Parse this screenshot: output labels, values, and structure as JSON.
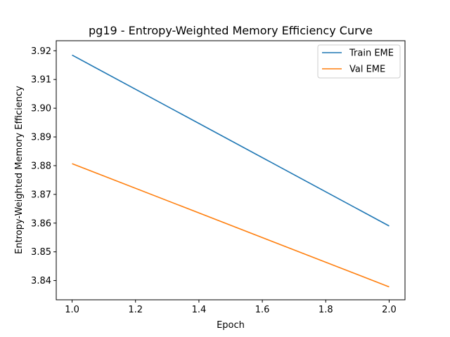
{
  "chart_data": {
    "type": "line",
    "title": "pg19 - Entropy-Weighted Memory Efficiency Curve",
    "xlabel": "Epoch",
    "ylabel": "Entropy-Weighted Memory Efficiency",
    "x": [
      1.0,
      2.0
    ],
    "xlim": [
      0.95,
      2.05
    ],
    "ylim": [
      3.8333,
      3.9235
    ],
    "xticks": [
      "1.0",
      "1.2",
      "1.4",
      "1.6",
      "1.8",
      "2.0"
    ],
    "yticks": [
      "3.84",
      "3.85",
      "3.86",
      "3.87",
      "3.88",
      "3.89",
      "3.90",
      "3.91",
      "3.92"
    ],
    "grid": false,
    "legend_position": "top-right",
    "series": [
      {
        "name": "Train EME",
        "color": "#1f77b4",
        "values": [
          3.9185,
          3.859
        ]
      },
      {
        "name": "Val EME",
        "color": "#ff7f0e",
        "values": [
          3.8807,
          3.8378
        ]
      }
    ]
  }
}
